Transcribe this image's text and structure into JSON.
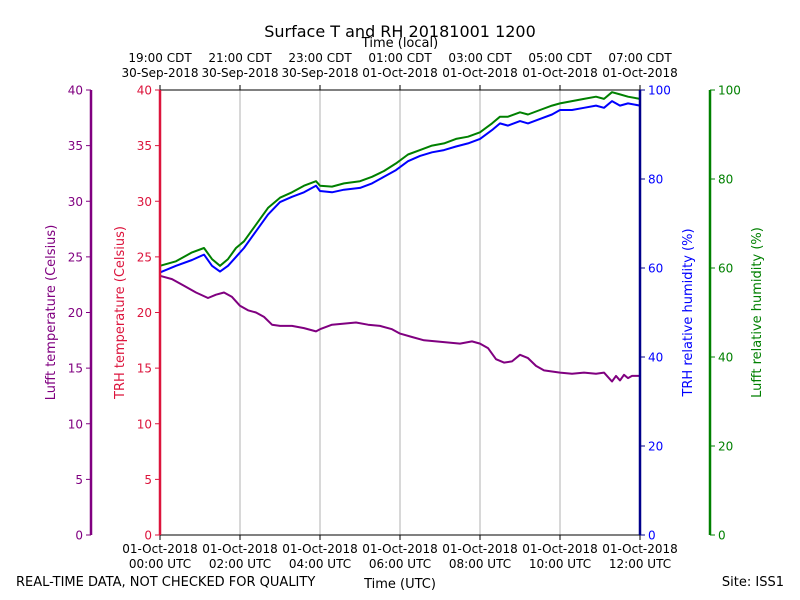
{
  "chart_data": {
    "type": "line",
    "title": "Surface T and RH 20181001 1200",
    "top_xlabel": "Time (local)",
    "xlabel": "Time (UTC)",
    "xlim_utc_hours": [
      0,
      12
    ],
    "grid": "vertical",
    "x_ticks_utc": [
      {
        "h": 0,
        "l1": "01-Oct-2018",
        "l2": "00:00 UTC"
      },
      {
        "h": 2,
        "l1": "01-Oct-2018",
        "l2": "02:00 UTC"
      },
      {
        "h": 4,
        "l1": "01-Oct-2018",
        "l2": "04:00 UTC"
      },
      {
        "h": 6,
        "l1": "01-Oct-2018",
        "l2": "06:00 UTC"
      },
      {
        "h": 8,
        "l1": "01-Oct-2018",
        "l2": "08:00 UTC"
      },
      {
        "h": 10,
        "l1": "01-Oct-2018",
        "l2": "10:00 UTC"
      },
      {
        "h": 12,
        "l1": "01-Oct-2018",
        "l2": "12:00 UTC"
      }
    ],
    "x_ticks_local": [
      {
        "h": 0,
        "l1": "19:00 CDT",
        "l2": "30-Sep-2018"
      },
      {
        "h": 2,
        "l1": "21:00 CDT",
        "l2": "30-Sep-2018"
      },
      {
        "h": 4,
        "l1": "23:00 CDT",
        "l2": "30-Sep-2018"
      },
      {
        "h": 6,
        "l1": "01:00 CDT",
        "l2": "01-Oct-2018"
      },
      {
        "h": 8,
        "l1": "03:00 CDT",
        "l2": "01-Oct-2018"
      },
      {
        "h": 10,
        "l1": "05:00 CDT",
        "l2": "01-Oct-2018"
      },
      {
        "h": 12,
        "l1": "07:00 CDT",
        "l2": "01-Oct-2018"
      }
    ],
    "axes": {
      "lufft_temp": {
        "label": "Lufft temperature (Celsius)",
        "ylim": [
          0,
          40
        ],
        "ticks": [
          0,
          5,
          10,
          15,
          20,
          25,
          30,
          35,
          40
        ],
        "color": "#800080"
      },
      "trh_temp": {
        "label": "TRH temperature (Celsius)",
        "ylim": [
          0,
          40
        ],
        "ticks": [
          0,
          5,
          10,
          15,
          20,
          25,
          30,
          35,
          40
        ],
        "color": "#dc143c"
      },
      "trh_rh": {
        "label": "TRH relative humidity (%)",
        "ylim": [
          0,
          100
        ],
        "ticks": [
          0,
          20,
          40,
          60,
          80,
          100
        ],
        "color": "#0000ff",
        "spine_color": "#00008b"
      },
      "lufft_rh": {
        "label": "Lufft relative humidity (%)",
        "ylim": [
          0,
          100
        ],
        "ticks": [
          0,
          20,
          40,
          60,
          80,
          100
        ],
        "color": "#008000"
      }
    },
    "series": [
      {
        "axis": "trh_temp",
        "color": "#800080",
        "x": [
          0,
          0.3,
          0.6,
          0.9,
          1.2,
          1.4,
          1.6,
          1.8,
          2.0,
          2.2,
          2.4,
          2.6,
          2.8,
          3.0,
          3.3,
          3.6,
          3.9,
          4.0,
          4.3,
          4.6,
          4.9,
          5.2,
          5.5,
          5.8,
          6.0,
          6.3,
          6.6,
          6.9,
          7.2,
          7.5,
          7.8,
          8.0,
          8.2,
          8.4,
          8.6,
          8.8,
          9.0,
          9.2,
          9.4,
          9.6,
          9.8,
          10.0,
          10.3,
          10.6,
          10.9,
          11.1,
          11.3,
          11.4,
          11.5,
          11.6,
          11.7,
          11.8,
          12.0
        ],
        "y": [
          23.3,
          23.0,
          22.4,
          21.8,
          21.3,
          21.6,
          21.8,
          21.4,
          20.6,
          20.2,
          20.0,
          19.6,
          18.9,
          18.8,
          18.8,
          18.6,
          18.3,
          18.5,
          18.9,
          19.0,
          19.1,
          18.9,
          18.8,
          18.5,
          18.1,
          17.8,
          17.5,
          17.4,
          17.3,
          17.2,
          17.4,
          17.2,
          16.8,
          15.8,
          15.5,
          15.6,
          16.2,
          15.9,
          15.2,
          14.8,
          14.7,
          14.6,
          14.5,
          14.6,
          14.5,
          14.6,
          13.8,
          14.3,
          13.9,
          14.4,
          14.1,
          14.3,
          14.3
        ]
      },
      {
        "axis": "trh_rh",
        "color": "#0000ff",
        "x": [
          0,
          0.4,
          0.8,
          1.1,
          1.3,
          1.5,
          1.7,
          1.9,
          2.1,
          2.3,
          2.5,
          2.7,
          3.0,
          3.3,
          3.6,
          3.9,
          4.0,
          4.3,
          4.6,
          5.0,
          5.3,
          5.6,
          5.9,
          6.2,
          6.5,
          6.8,
          7.1,
          7.4,
          7.7,
          8.0,
          8.3,
          8.5,
          8.7,
          9.0,
          9.2,
          9.5,
          9.8,
          10.0,
          10.3,
          10.6,
          10.9,
          11.1,
          11.3,
          11.5,
          11.7,
          12.0
        ],
        "y": [
          59.0,
          60.5,
          61.8,
          63.0,
          60.5,
          59.2,
          60.5,
          62.5,
          64.5,
          67.0,
          69.5,
          72.0,
          74.8,
          76.0,
          77.0,
          78.5,
          77.3,
          77.0,
          77.6,
          78.0,
          79.0,
          80.5,
          82.0,
          84.0,
          85.2,
          86.0,
          86.5,
          87.3,
          88.0,
          89.0,
          91.0,
          92.5,
          92.0,
          93.0,
          92.5,
          93.5,
          94.5,
          95.5,
          95.5,
          96.0,
          96.5,
          96.0,
          97.5,
          96.5,
          97.0,
          96.5
        ]
      },
      {
        "axis": "lufft_rh",
        "color": "#008000",
        "x": [
          0,
          0.4,
          0.8,
          1.1,
          1.3,
          1.5,
          1.7,
          1.9,
          2.1,
          2.3,
          2.5,
          2.7,
          3.0,
          3.3,
          3.6,
          3.9,
          4.0,
          4.3,
          4.6,
          5.0,
          5.3,
          5.6,
          5.9,
          6.2,
          6.5,
          6.8,
          7.1,
          7.4,
          7.7,
          8.0,
          8.3,
          8.5,
          8.7,
          9.0,
          9.2,
          9.5,
          9.8,
          10.0,
          10.3,
          10.6,
          10.9,
          11.1,
          11.3,
          11.5,
          11.7,
          12.0
        ],
        "y": [
          60.5,
          61.5,
          63.5,
          64.5,
          62.0,
          60.5,
          62.0,
          64.5,
          66.0,
          68.5,
          71.0,
          73.5,
          75.8,
          77.0,
          78.5,
          79.5,
          78.5,
          78.3,
          79.0,
          79.5,
          80.5,
          81.8,
          83.5,
          85.5,
          86.5,
          87.5,
          88.0,
          89.0,
          89.5,
          90.5,
          92.5,
          94.0,
          94.0,
          95.0,
          94.5,
          95.5,
          96.5,
          97.0,
          97.5,
          98.0,
          98.5,
          98.0,
          99.5,
          99.0,
          98.5,
          98.0
        ]
      }
    ]
  },
  "footer": {
    "note": "REAL-TIME DATA, NOT CHECKED FOR QUALITY",
    "site": "Site: ISS1"
  }
}
